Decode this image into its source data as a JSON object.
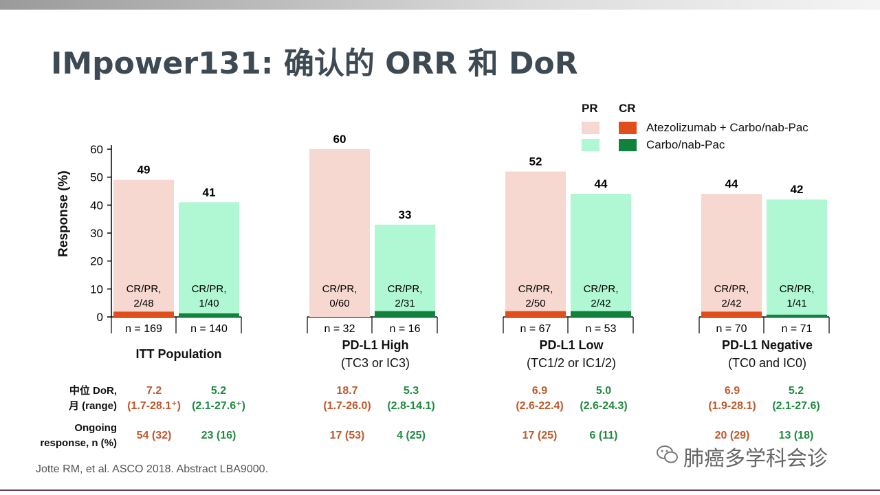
{
  "title": "IMpower131: 确认的 ORR 和 DoR",
  "legend": {
    "pr_header": "PR",
    "cr_header": "CR",
    "items": [
      {
        "label": "Atezolizumab + Carbo/nab-Pac",
        "pr_color": "#f6d8d0",
        "cr_color": "#e04e1b"
      },
      {
        "label": "Carbo/nab-Pac",
        "pr_color": "#b0f7d3",
        "cr_color": "#11823b"
      }
    ]
  },
  "chart_data": {
    "type": "bar",
    "ylabel": "Response (%)",
    "ylim": [
      0,
      60
    ],
    "yticks": [
      "0",
      "10",
      "20",
      "30",
      "40",
      "50",
      "60"
    ],
    "groups": [
      {
        "name": "ITT Population",
        "subtitle": "",
        "bars": [
          {
            "series": "Atezolizumab + Carbo/nab-Pac",
            "total": 49,
            "total_label": "49",
            "cr": 1.9,
            "crpr_label": [
              "CR/PR,",
              "2/48"
            ],
            "n_label": "n = 169"
          },
          {
            "series": "Carbo/nab-Pac",
            "total": 41,
            "total_label": "41",
            "cr": 1.3,
            "crpr_label": [
              "CR/PR,",
              "1/40"
            ],
            "n_label": "n = 140"
          }
        ]
      },
      {
        "name": "PD-L1 High",
        "subtitle": "(TC3 or IC3)",
        "bars": [
          {
            "series": "Atezolizumab + Carbo/nab-Pac",
            "total": 60,
            "total_label": "60",
            "cr": 0,
            "crpr_label": [
              "CR/PR,",
              "0/60"
            ],
            "n_label": "n = 32"
          },
          {
            "series": "Carbo/nab-Pac",
            "total": 33,
            "total_label": "33",
            "cr": 2.1,
            "crpr_label": [
              "CR/PR,",
              "2/31"
            ],
            "n_label": "n = 16"
          }
        ]
      },
      {
        "name": "PD-L1 Low",
        "subtitle": "(TC1/2 or IC1/2)",
        "bars": [
          {
            "series": "Atezolizumab + Carbo/nab-Pac",
            "total": 52,
            "total_label": "52",
            "cr": 2.1,
            "crpr_label": [
              "CR/PR,",
              "2/50"
            ],
            "n_label": "n = 67"
          },
          {
            "series": "Carbo/nab-Pac",
            "total": 44,
            "total_label": "44",
            "cr": 2.1,
            "crpr_label": [
              "CR/PR,",
              "2/42"
            ],
            "n_label": "n = 53"
          }
        ]
      },
      {
        "name": "PD-L1 Negative",
        "subtitle": "(TC0 and IC0)",
        "bars": [
          {
            "series": "Atezolizumab + Carbo/nab-Pac",
            "total": 44,
            "total_label": "44",
            "cr": 1.9,
            "crpr_label": [
              "CR/PR,",
              "2/42"
            ],
            "n_label": "n = 70"
          },
          {
            "series": "Carbo/nab-Pac",
            "total": 42,
            "total_label": "42",
            "cr": 0.8,
            "crpr_label": [
              "CR/PR,",
              "1/41"
            ],
            "n_label": "n = 71"
          }
        ]
      }
    ]
  },
  "dor_table": {
    "dor_label_line1": "中位 DoR,",
    "dor_label_line2": "月 (range)",
    "ongoing_label_line1": "Ongoing",
    "ongoing_label_line2": "response, n (%)",
    "columns": [
      {
        "series": "atezo",
        "median": "7.2",
        "range": "(1.7-28.1⁺)",
        "ongoing": "54 (32)"
      },
      {
        "series": "carbo",
        "median": "5.2",
        "range": "(2.1-27.6⁺)",
        "ongoing": "23 (16)"
      },
      {
        "series": "atezo",
        "median": "18.7",
        "range": "(1.7-26.0)",
        "ongoing": "17 (53)"
      },
      {
        "series": "carbo",
        "median": "5.3",
        "range": "(2.8-14.1)",
        "ongoing": "4 (25)"
      },
      {
        "series": "atezo",
        "median": "6.9",
        "range": "(2.6-22.4)",
        "ongoing": "17 (25)"
      },
      {
        "series": "carbo",
        "median": "5.0",
        "range": "(2.6-24.3)",
        "ongoing": "6 (11)"
      },
      {
        "series": "atezo",
        "median": "6.9",
        "range": "(1.9-28.1)",
        "ongoing": "20 (29)"
      },
      {
        "series": "carbo",
        "median": "5.2",
        "range": "(2.1-27.6)",
        "ongoing": "13 (18)"
      }
    ]
  },
  "footnote": "Jotte RM, et al. ASCO 2018. Abstract LBA9000.",
  "watermark": "肺癌多学科会诊",
  "colors": {
    "title": "#3d4a53",
    "atezo_text": "#c0582b",
    "carbo_text": "#1f8a3e"
  }
}
